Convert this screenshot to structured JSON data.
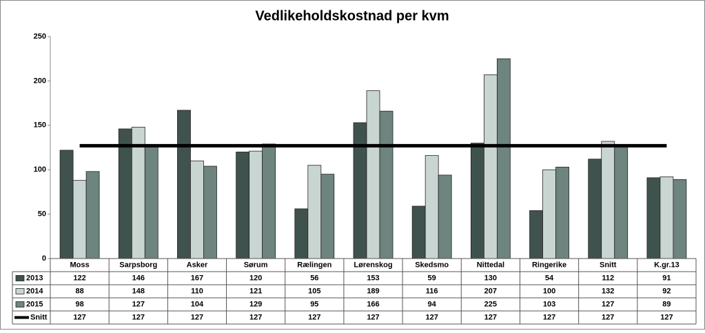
{
  "chart_data": {
    "type": "bar",
    "title": "Vedlikeholdskostnad per kvm",
    "categories": [
      "Moss",
      "Sarpsborg",
      "Asker",
      "Sørum",
      "Rælingen",
      "Lørenskog",
      "Skedsmo",
      "Nittedal",
      "Ringerike",
      "Snitt",
      "K.gr.13"
    ],
    "series": [
      {
        "name": "2013",
        "color": "#3f524e",
        "values": [
          122,
          146,
          167,
          120,
          56,
          153,
          59,
          130,
          54,
          112,
          91
        ]
      },
      {
        "name": "2014",
        "color": "#c9d5d1",
        "values": [
          88,
          148,
          110,
          121,
          105,
          189,
          116,
          207,
          100,
          132,
          92
        ]
      },
      {
        "name": "2015",
        "color": "#6d847f",
        "values": [
          98,
          127,
          104,
          129,
          95,
          166,
          94,
          225,
          103,
          127,
          89
        ]
      },
      {
        "name": "Snitt",
        "type": "line",
        "color": "#000000",
        "values": [
          127,
          127,
          127,
          127,
          127,
          127,
          127,
          127,
          127,
          127,
          127
        ]
      }
    ],
    "ylim": [
      0,
      250
    ],
    "yticks": [
      0,
      50,
      100,
      150,
      200,
      250
    ]
  }
}
